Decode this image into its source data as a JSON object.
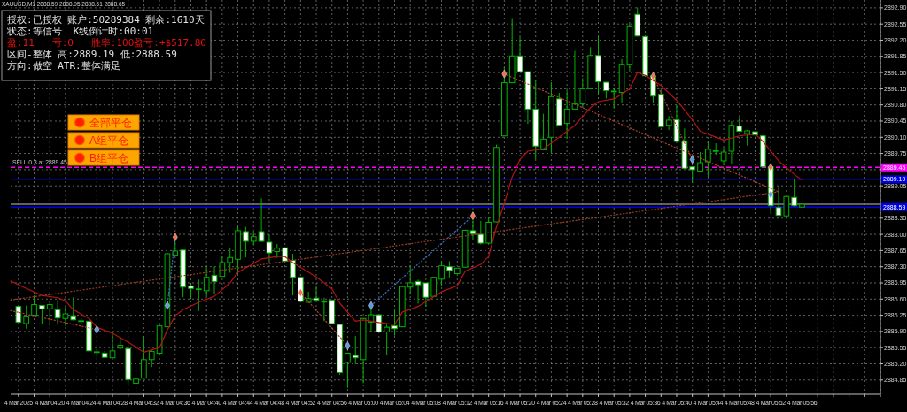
{
  "chart_data": {
    "type": "candlestick",
    "title": "XAUUSD,M1 2888.59 2888.95 2888.51 2888.65",
    "x": [
      "2025-03-04T04:16",
      "2025-03-04T04:17",
      "2025-03-04T04:18",
      "2025-03-04T04:19",
      "2025-03-04T04:20",
      "2025-03-04T04:21",
      "2025-03-04T04:22",
      "2025-03-04T04:23",
      "2025-03-04T04:24",
      "2025-03-04T04:25",
      "2025-03-04T04:26",
      "2025-03-04T04:27",
      "2025-03-04T04:28",
      "2025-03-04T04:29",
      "2025-03-04T04:30",
      "2025-03-04T04:31",
      "2025-03-04T04:32",
      "2025-03-04T04:33",
      "2025-03-04T04:34",
      "2025-03-04T04:35",
      "2025-03-04T04:36",
      "2025-03-04T04:37",
      "2025-03-04T04:38",
      "2025-03-04T04:39",
      "2025-03-04T04:40",
      "2025-03-04T04:41",
      "2025-03-04T04:42",
      "2025-03-04T04:43",
      "2025-03-04T04:44",
      "2025-03-04T04:45",
      "2025-03-04T04:46",
      "2025-03-04T04:47",
      "2025-03-04T04:48",
      "2025-03-04T04:49",
      "2025-03-04T04:50",
      "2025-03-04T04:51",
      "2025-03-04T04:52",
      "2025-03-04T04:53",
      "2025-03-04T04:54",
      "2025-03-04T04:55",
      "2025-03-04T04:56",
      "2025-03-04T04:57",
      "2025-03-04T04:58",
      "2025-03-04T04:59",
      "2025-03-04T05:00",
      "2025-03-04T05:01",
      "2025-03-04T05:02",
      "2025-03-04T05:03",
      "2025-03-04T05:04",
      "2025-03-04T05:05",
      "2025-03-04T05:06",
      "2025-03-04T05:07",
      "2025-03-04T05:08",
      "2025-03-04T05:09",
      "2025-03-04T05:10",
      "2025-03-04T05:11",
      "2025-03-04T05:12",
      "2025-03-04T05:13",
      "2025-03-04T05:14",
      "2025-03-04T05:15",
      "2025-03-04T05:16",
      "2025-03-04T05:17",
      "2025-03-04T05:18",
      "2025-03-04T05:19",
      "2025-03-04T05:20",
      "2025-03-04T05:21",
      "2025-03-04T05:22",
      "2025-03-04T05:23",
      "2025-03-04T05:24",
      "2025-03-04T05:25",
      "2025-03-04T05:26",
      "2025-03-04T05:27",
      "2025-03-04T05:28",
      "2025-03-04T05:29",
      "2025-03-04T05:30",
      "2025-03-04T05:31",
      "2025-03-04T05:32",
      "2025-03-04T05:33",
      "2025-03-04T05:34",
      "2025-03-04T05:35",
      "2025-03-04T05:36",
      "2025-03-04T05:37",
      "2025-03-04T05:38",
      "2025-03-04T05:39",
      "2025-03-04T05:40",
      "2025-03-04T05:41",
      "2025-03-04T05:42",
      "2025-03-04T05:43",
      "2025-03-04T05:44",
      "2025-03-04T05:45",
      "2025-03-04T05:46",
      "2025-03-04T05:47",
      "2025-03-04T05:48",
      "2025-03-04T05:49",
      "2025-03-04T05:50",
      "2025-03-04T05:51",
      "2025-03-04T05:52",
      "2025-03-04T05:53",
      "2025-03-04T05:54",
      "2025-03-04T05:55",
      "2025-03-04T05:56"
    ],
    "ohlc": [
      [
        2886.44,
        2886.46,
        2886.08,
        2886.1
      ],
      [
        2886.07,
        2886.46,
        2885.96,
        2886.23
      ],
      [
        2886.25,
        2886.68,
        2886.24,
        2886.48
      ],
      [
        2886.46,
        2886.46,
        2886.05,
        2886.39
      ],
      [
        2886.39,
        2886.56,
        2886.02,
        2886.48
      ],
      [
        2886.37,
        2886.58,
        2886.04,
        2886.19
      ],
      [
        2886.18,
        2886.44,
        2886.02,
        2886.28
      ],
      [
        2886.24,
        2886.64,
        2886.14,
        2886.15
      ],
      [
        2886.13,
        2886.2,
        2886.05,
        2886.13
      ],
      [
        2886.12,
        2886.12,
        2885.48,
        2885.48
      ],
      [
        2885.46,
        2885.54,
        2885.34,
        2885.46
      ],
      [
        2885.43,
        2885.48,
        2885.34,
        2885.34
      ],
      [
        2885.33,
        2885.89,
        2885.33,
        2885.48
      ],
      [
        2885.54,
        2885.78,
        2885.51,
        2885.6
      ],
      [
        2885.53,
        2885.55,
        2884.75,
        2884.86
      ],
      [
        2884.78,
        2885.15,
        2884.59,
        2884.87
      ],
      [
        2884.89,
        2885.8,
        2884.88,
        2885.29
      ],
      [
        2885.29,
        2885.49,
        2885.13,
        2885.47
      ],
      [
        2885.43,
        2886.07,
        2885.38,
        2886.02
      ],
      [
        2886.0,
        2887.6,
        2886.0,
        2887.58
      ],
      [
        2887.55,
        2887.85,
        2887.53,
        2887.64
      ],
      [
        2887.66,
        2887.67,
        2886.64,
        2886.86
      ],
      [
        2886.88,
        2886.95,
        2886.6,
        2886.83
      ],
      [
        2886.82,
        2887.02,
        2886.34,
        2886.82
      ],
      [
        2886.78,
        2887.29,
        2886.66,
        2887.07
      ],
      [
        2887.11,
        2887.3,
        2886.72,
        2886.98
      ],
      [
        2887.09,
        2887.52,
        2887.09,
        2887.39
      ],
      [
        2887.39,
        2887.71,
        2887.17,
        2887.5
      ],
      [
        2887.46,
        2888.17,
        2887.14,
        2888.08
      ],
      [
        2888.06,
        2888.16,
        2887.5,
        2887.85
      ],
      [
        2887.85,
        2888.06,
        2887.76,
        2887.95
      ],
      [
        2888.06,
        2888.78,
        2887.84,
        2887.85
      ],
      [
        2887.83,
        2887.98,
        2887.42,
        2887.6
      ],
      [
        2887.63,
        2887.79,
        2887.49,
        2887.7
      ],
      [
        2887.71,
        2887.72,
        2887.4,
        2887.42
      ],
      [
        2887.44,
        2887.58,
        2886.68,
        2887.07
      ],
      [
        2887.07,
        2887.08,
        2886.53,
        2886.55
      ],
      [
        2886.53,
        2886.76,
        2886.52,
        2886.61
      ],
      [
        2886.62,
        2886.88,
        2886.57,
        2886.58
      ],
      [
        2886.55,
        2886.63,
        2886.12,
        2886.55
      ],
      [
        2886.58,
        2886.58,
        2886.06,
        2886.07
      ],
      [
        2886.05,
        2886.06,
        2884.96,
        2885.01
      ],
      [
        2885.23,
        2885.44,
        2884.68,
        2885.43
      ],
      [
        2885.38,
        2885.8,
        2885.19,
        2885.33
      ],
      [
        2885.29,
        2886.19,
        2884.78,
        2886.18
      ],
      [
        2886.1,
        2886.4,
        2885.89,
        2886.26
      ],
      [
        2886.26,
        2886.26,
        2885.88,
        2885.89
      ],
      [
        2885.89,
        2886.05,
        2885.38,
        2885.99
      ],
      [
        2886.02,
        2886.39,
        2885.81,
        2885.96
      ],
      [
        2886.0,
        2886.88,
        2885.99,
        2886.87
      ],
      [
        2886.86,
        2887.33,
        2886.7,
        2886.95
      ],
      [
        2886.98,
        2887.02,
        2886.5,
        2886.91
      ],
      [
        2886.95,
        2886.95,
        2886.44,
        2886.64
      ],
      [
        2886.66,
        2887.08,
        2886.65,
        2887.07
      ],
      [
        2887.03,
        2887.42,
        2886.88,
        2887.32
      ],
      [
        2887.3,
        2887.42,
        2887.07,
        2887.22
      ],
      [
        2887.15,
        2887.27,
        2887.14,
        2887.27
      ],
      [
        2887.29,
        2888.1,
        2887.28,
        2888.09
      ],
      [
        2888.08,
        2888.3,
        2887.9,
        2888.01
      ],
      [
        2888.0,
        2888.29,
        2887.78,
        2887.81
      ],
      [
        2887.81,
        2888.37,
        2887.8,
        2888.26
      ],
      [
        2888.27,
        2889.94,
        2888.26,
        2889.88
      ],
      [
        2890.13,
        2891.61,
        2890.12,
        2891.28
      ],
      [
        2891.28,
        2892.68,
        2891.27,
        2891.86
      ],
      [
        2891.86,
        2892.27,
        2891.51,
        2891.52
      ],
      [
        2891.52,
        2891.53,
        2890.39,
        2890.71
      ],
      [
        2890.71,
        2891.33,
        2889.62,
        2889.91
      ],
      [
        2889.83,
        2890.61,
        2889.82,
        2890.06
      ],
      [
        2890.1,
        2891.29,
        2889.76,
        2890.98
      ],
      [
        2890.93,
        2891.06,
        2890.34,
        2890.36
      ],
      [
        2890.4,
        2891.12,
        2890.08,
        2890.71
      ],
      [
        2890.71,
        2891.97,
        2890.7,
        2890.82
      ],
      [
        2890.82,
        2891.38,
        2890.77,
        2891.15
      ],
      [
        2891.15,
        2892.05,
        2891.14,
        2891.87
      ],
      [
        2891.87,
        2892.27,
        2891.03,
        2891.3
      ],
      [
        2891.29,
        2891.3,
        2890.94,
        2891.11
      ],
      [
        2891.1,
        2891.15,
        2890.72,
        2891.1
      ],
      [
        2891.07,
        2891.79,
        2890.84,
        2891.68
      ],
      [
        2891.68,
        2892.56,
        2891.54,
        2892.51
      ],
      [
        2892.76,
        2892.91,
        2892.28,
        2892.29
      ],
      [
        2892.28,
        2892.29,
        2891.42,
        2891.43
      ],
      [
        2891.43,
        2891.43,
        2890.84,
        2890.99
      ],
      [
        2891.03,
        2891.12,
        2890.31,
        2890.33
      ],
      [
        2890.36,
        2890.56,
        2890.26,
        2890.47
      ],
      [
        2890.48,
        2890.8,
        2890.0,
        2890.01
      ],
      [
        2890.01,
        2890.29,
        2889.42,
        2889.43
      ],
      [
        2889.46,
        2889.47,
        2889.11,
        2889.4
      ],
      [
        2889.37,
        2889.78,
        2889.36,
        2889.55
      ],
      [
        2889.57,
        2890.01,
        2889.24,
        2889.84
      ],
      [
        2889.8,
        2889.97,
        2889.72,
        2889.81
      ],
      [
        2889.59,
        2889.88,
        2889.5,
        2889.78
      ],
      [
        2889.8,
        2890.45,
        2889.53,
        2890.36
      ],
      [
        2890.34,
        2890.54,
        2890.22,
        2890.23
      ],
      [
        2890.18,
        2890.26,
        2889.92,
        2890.24
      ],
      [
        2890.22,
        2890.22,
        2890.15,
        2890.15
      ],
      [
        2890.13,
        2890.14,
        2889.46,
        2889.46
      ],
      [
        2889.46,
        2889.47,
        2888.46,
        2888.62
      ],
      [
        2888.58,
        2889.01,
        2888.4,
        2888.41
      ],
      [
        2888.4,
        2888.83,
        2888.39,
        2888.82
      ],
      [
        2888.8,
        2889.21,
        2888.6,
        2888.62
      ],
      [
        2888.59,
        2888.95,
        2888.51,
        2888.65
      ]
    ],
    "color": "#00b400",
    "colors": [
      "#ffffff",
      "#000000",
      "#000000",
      "#ffffff",
      "#000000",
      "#ffffff",
      "#000000",
      "#ffffff",
      "#000000",
      "#ffffff",
      "#000000",
      "#ffffff",
      "#000000",
      "#000000",
      "#ffffff",
      "#000000",
      "#000000",
      "#000000",
      "#000000",
      "#000000",
      "#000000",
      "#ffffff",
      "#ffffff",
      "#000000",
      "#000000",
      "#ffffff",
      "#000000",
      "#000000",
      "#000000",
      "#ffffff",
      "#000000",
      "#ffffff",
      "#ffffff",
      "#000000",
      "#ffffff",
      "#ffffff",
      "#ffffff",
      "#000000",
      "#ffffff",
      "#000000",
      "#ffffff",
      "#ffffff",
      "#000000",
      "#ffffff",
      "#000000",
      "#000000",
      "#ffffff",
      "#000000",
      "#ffffff",
      "#000000",
      "#000000",
      "#ffffff",
      "#ffffff",
      "#000000",
      "#000000",
      "#ffffff",
      "#000000",
      "#000000",
      "#ffffff",
      "#ffffff",
      "#000000",
      "#000000",
      "#000000",
      "#000000",
      "#ffffff",
      "#ffffff",
      "#ffffff",
      "#000000",
      "#000000",
      "#ffffff",
      "#000000",
      "#000000",
      "#000000",
      "#000000",
      "#ffffff",
      "#ffffff",
      "#000000",
      "#000000",
      "#000000",
      "#ffffff",
      "#ffffff",
      "#ffffff",
      "#ffffff",
      "#000000",
      "#ffffff",
      "#ffffff",
      "#ffffff",
      "#000000",
      "#000000",
      "#000000",
      "#000000",
      "#000000",
      "#ffffff",
      "#000000",
      "#ffffff",
      "#ffffff",
      "#ffffff",
      "#ffffff",
      "#000000",
      "#ffffff",
      "#000000"
    ],
    "xlim": [
      "2025-03-04T04:15",
      "2025-03-04T06:06"
    ],
    "xticks": [
      {
        "value": "2025-03-04T04:16",
        "label": "4 Mar 2025"
      },
      {
        "value": "2025-03-04T04:18",
        "label": null
      },
      {
        "value": "2025-03-04T04:20",
        "label": "4 Mar 04:20"
      },
      {
        "value": "2025-03-04T04:22",
        "label": null
      },
      {
        "value": "2025-03-04T04:24",
        "label": "4 Mar 04:24"
      },
      {
        "value": "2025-03-04T04:26",
        "label": null
      },
      {
        "value": "2025-03-04T04:28",
        "label": "4 Mar 04:28"
      },
      {
        "value": "2025-03-04T04:30",
        "label": null
      },
      {
        "value": "2025-03-04T04:32",
        "label": "4 Mar 04:32"
      },
      {
        "value": "2025-03-04T04:34",
        "label": null
      },
      {
        "value": "2025-03-04T04:36",
        "label": "4 Mar 04:36"
      },
      {
        "value": "2025-03-04T04:38",
        "label": null
      },
      {
        "value": "2025-03-04T04:40",
        "label": "4 Mar 04:40"
      },
      {
        "value": "2025-03-04T04:42",
        "label": null
      },
      {
        "value": "2025-03-04T04:44",
        "label": "4 Mar 04:44"
      },
      {
        "value": "2025-03-04T04:46",
        "label": null
      },
      {
        "value": "2025-03-04T04:48",
        "label": "4 Mar 04:48"
      },
      {
        "value": "2025-03-04T04:50",
        "label": null
      },
      {
        "value": "2025-03-04T04:52",
        "label": "4 Mar 04:52"
      },
      {
        "value": "2025-03-04T04:54",
        "label": null
      },
      {
        "value": "2025-03-04T04:56",
        "label": "4 Mar 04:56"
      },
      {
        "value": "2025-03-04T04:58",
        "label": null
      },
      {
        "value": "2025-03-04T05:00",
        "label": "4 Mar 05:00"
      },
      {
        "value": "2025-03-04T05:02",
        "label": null
      },
      {
        "value": "2025-03-04T05:04",
        "label": "4 Mar 05:04"
      },
      {
        "value": "2025-03-04T05:06",
        "label": null
      },
      {
        "value": "2025-03-04T05:08",
        "label": "4 Mar 05:08"
      },
      {
        "value": "2025-03-04T05:10",
        "label": null
      },
      {
        "value": "2025-03-04T05:12",
        "label": "4 Mar 05:12"
      },
      {
        "value": "2025-03-04T05:14",
        "label": null
      },
      {
        "value": "2025-03-04T05:16",
        "label": "4 Mar 05:16"
      },
      {
        "value": "2025-03-04T05:18",
        "label": null
      },
      {
        "value": "2025-03-04T05:20",
        "label": "4 Mar 05:20"
      },
      {
        "value": "2025-03-04T05:22",
        "label": null
      },
      {
        "value": "2025-03-04T05:24",
        "label": "4 Mar 05:24"
      },
      {
        "value": "2025-03-04T05:26",
        "label": null
      },
      {
        "value": "2025-03-04T05:28",
        "label": "4 Mar 05:28"
      },
      {
        "value": "2025-03-04T05:30",
        "label": null
      },
      {
        "value": "2025-03-04T05:32",
        "label": "4 Mar 05:32"
      },
      {
        "value": "2025-03-04T05:34",
        "label": null
      },
      {
        "value": "2025-03-04T05:36",
        "label": "4 Mar 05:36"
      },
      {
        "value": "2025-03-04T05:38",
        "label": null
      },
      {
        "value": "2025-03-04T05:40",
        "label": "4 Mar 05:40"
      },
      {
        "value": "2025-03-04T05:42",
        "label": null
      },
      {
        "value": "2025-03-04T05:44",
        "label": "4 Mar 05:44"
      },
      {
        "value": "2025-03-04T05:46",
        "label": null
      },
      {
        "value": "2025-03-04T05:48",
        "label": "4 Mar 05:48"
      },
      {
        "value": "2025-03-04T05:50",
        "label": null
      },
      {
        "value": "2025-03-04T05:52",
        "label": "4 Mar 05:52"
      },
      {
        "value": "2025-03-04T05:54",
        "label": null
      },
      {
        "value": "2025-03-04T05:56",
        "label": "4 Mar 05:56"
      },
      {
        "value": "2025-03-04T05:58",
        "label": null
      },
      {
        "value": "2025-03-04T06:00",
        "label": null
      },
      {
        "value": "2025-03-04T06:02",
        "label": null
      },
      {
        "value": "2025-03-04T06:04",
        "label": null
      },
      {
        "value": "2025-03-04T06:06",
        "label": null
      }
    ],
    "ylim": [
      2884.54,
      2893.07
    ],
    "yticks": [
      {
        "value": 2884.85,
        "label": "2884.85"
      },
      {
        "value": 2885.2,
        "label": "2885.20"
      },
      {
        "value": 2885.55,
        "label": "2885.55"
      },
      {
        "value": 2885.9,
        "label": "2885.90"
      },
      {
        "value": 2886.25,
        "label": "2886.25"
      },
      {
        "value": 2886.6,
        "label": "2886.60"
      },
      {
        "value": 2886.95,
        "label": "2886.95"
      },
      {
        "value": 2887.3,
        "label": "2887.30"
      },
      {
        "value": 2887.65,
        "label": "2887.65"
      },
      {
        "value": 2888.0,
        "label": "2888.00"
      },
      {
        "value": 2888.35,
        "label": "2888.35"
      },
      {
        "value": 2888.7,
        "label": null
      },
      {
        "value": 2889.05,
        "label": "2889.05"
      },
      {
        "value": 2889.4,
        "label": null
      },
      {
        "value": 2889.75,
        "label": "2889.75"
      },
      {
        "value": 2890.1,
        "label": "2890.10"
      },
      {
        "value": 2890.45,
        "label": "2890.45"
      },
      {
        "value": 2890.8,
        "label": "2890.80"
      },
      {
        "value": 2891.15,
        "label": "2891.15"
      },
      {
        "value": 2891.5,
        "label": "2891.50"
      },
      {
        "value": 2891.85,
        "label": "2891.85"
      },
      {
        "value": 2892.2,
        "label": "2892.20"
      },
      {
        "value": 2892.55,
        "label": "2892.55"
      },
      {
        "value": 2892.9,
        "label": "2892.90"
      }
    ],
    "grid": true,
    "series": [
      {
        "type": "line",
        "color": "#b41414",
        "x": [
          "2025-03-04T04:15",
          "2025-03-04T04:17",
          "2025-03-04T04:19",
          "2025-03-04T04:21",
          "2025-03-04T04:22",
          "2025-03-04T04:23",
          "2025-03-04T04:25",
          "2025-03-04T04:26",
          "2025-03-04T04:28",
          "2025-03-04T04:30",
          "2025-03-04T04:32",
          "2025-03-04T04:34",
          "2025-03-04T04:35",
          "2025-03-04T04:36",
          "2025-03-04T04:37",
          "2025-03-04T04:39",
          "2025-03-04T04:41",
          "2025-03-04T04:43",
          "2025-03-04T04:44",
          "2025-03-04T04:46",
          "2025-03-04T04:47",
          "2025-03-04T04:49",
          "2025-03-04T04:50",
          "2025-03-04T04:51",
          "2025-03-04T04:54",
          "2025-03-04T04:56",
          "2025-03-04T04:57",
          "2025-03-04T04:59",
          "2025-03-04T05:00",
          "2025-03-04T05:02",
          "2025-03-04T05:04",
          "2025-03-04T05:05",
          "2025-03-04T05:07",
          "2025-03-04T05:10",
          "2025-03-04T05:12",
          "2025-03-04T05:13",
          "2025-03-04T05:15",
          "2025-03-04T05:16",
          "2025-03-04T05:17",
          "2025-03-04T05:18",
          "2025-03-04T05:19",
          "2025-03-04T05:20",
          "2025-03-04T05:21",
          "2025-03-04T05:23",
          "2025-03-04T05:25",
          "2025-03-04T05:27",
          "2025-03-04T05:29",
          "2025-03-04T05:30",
          "2025-03-04T05:32",
          "2025-03-04T05:34",
          "2025-03-04T05:35",
          "2025-03-04T05:36",
          "2025-03-04T05:38",
          "2025-03-04T05:40",
          "2025-03-04T05:42",
          "2025-03-04T05:43",
          "2025-03-04T05:46",
          "2025-03-04T05:48",
          "2025-03-04T05:50",
          "2025-03-04T05:51",
          "2025-03-04T05:53",
          "2025-03-04T05:55",
          "2025-03-04T05:56"
        ],
        "values": [
          2886.99,
          2886.83,
          2886.68,
          2886.63,
          2886.56,
          2886.37,
          2886.18,
          2885.99,
          2885.86,
          2885.67,
          2885.45,
          2885.55,
          2885.93,
          2886.24,
          2886.37,
          2886.53,
          2886.66,
          2886.95,
          2887.18,
          2887.37,
          2887.47,
          2887.52,
          2887.52,
          2887.39,
          2887.08,
          2886.82,
          2886.51,
          2886.12,
          2886.15,
          2886.09,
          2886.05,
          2886.32,
          2886.44,
          2886.76,
          2886.89,
          2887.2,
          2887.35,
          2887.52,
          2888.16,
          2888.67,
          2889.24,
          2889.62,
          2889.8,
          2889.85,
          2890.1,
          2890.36,
          2890.74,
          2890.87,
          2890.93,
          2891.15,
          2891.5,
          2891.44,
          2891.22,
          2890.9,
          2890.48,
          2890.23,
          2890.04,
          2890.13,
          2890.17,
          2890.01,
          2889.59,
          2889.3,
          2889.17
        ]
      },
      {
        "type": "line",
        "line_style": "dotted",
        "color": "#9a3a1e",
        "x": [
          "2025-03-04T04:15",
          "2025-03-04T05:53"
        ],
        "values": [
          2886.58,
          2888.92
        ]
      },
      {
        "type": "line",
        "line_style": "dotted",
        "color": "#b0402a",
        "x": [
          "2025-03-04T04:15",
          "2025-03-04T04:26"
        ],
        "values": [
          2886.35,
          2885.94
        ]
      },
      {
        "type": "line",
        "line_style": "dotted",
        "color": "#3a6ec0",
        "x": [
          "2025-03-04T04:35",
          "2025-03-04T04:36"
        ],
        "values": [
          2886.46,
          2887.94
        ]
      },
      {
        "type": "line",
        "line_style": "dotted",
        "color": "#b0402a",
        "x": [
          "2025-03-04T04:52",
          "2025-03-04T04:58"
        ],
        "values": [
          2886.74,
          2885.59
        ]
      },
      {
        "type": "line",
        "line_style": "dotted",
        "color": "#3a6ec0",
        "x": [
          "2025-03-04T05:01",
          "2025-03-04T05:14"
        ],
        "values": [
          2886.46,
          2888.4
        ]
      },
      {
        "type": "line",
        "line_style": "dotted",
        "color": "#b0402a",
        "x": [
          "2025-03-04T05:18",
          "2025-03-04T05:53"
        ],
        "values": [
          2891.47,
          2888.92
        ]
      },
      {
        "type": "line",
        "line_style": "dotted",
        "color": "#b0402a",
        "x": [
          "2025-03-04T05:37",
          "2025-03-04T05:42"
        ],
        "values": [
          2891.42,
          2889.62
        ]
      },
      {
        "type": "scatter",
        "marker": "diamond",
        "color": "#f07050",
        "x": [
          "2025-03-04T04:36",
          "2025-03-04T04:52",
          "2025-03-04T05:14",
          "2025-03-04T05:18",
          "2025-03-04T05:37",
          "2025-03-04T05:52"
        ],
        "values": [
          2887.94,
          2886.74,
          2888.4,
          2891.47,
          2891.42,
          2889.45
        ]
      },
      {
        "type": "scatter",
        "marker": "diamond",
        "color": "#5a9ae0",
        "x": [
          "2025-03-04T04:26",
          "2025-03-04T04:35",
          "2025-03-04T04:58",
          "2025-03-04T05:01",
          "2025-03-04T05:42",
          "2025-03-04T05:52"
        ],
        "values": [
          2885.94,
          2886.46,
          2885.59,
          2886.46,
          2889.62,
          2888.86
        ]
      }
    ],
    "ref_lines": [
      {
        "axis": "y",
        "value": 2889.45,
        "label": "2889.45",
        "color": "#ff00ff",
        "line_style": "dashed"
      },
      {
        "axis": "y",
        "value": 2889.19,
        "label": "2889.19",
        "color": "#0000e0",
        "line_style": "solid"
      },
      {
        "axis": "y",
        "value": 2888.65,
        "color": "#808080",
        "line_style": "solid"
      },
      {
        "axis": "y",
        "value": 2888.59,
        "label": "2888.59",
        "color": "#0000e0",
        "line_style": "solid"
      }
    ],
    "annotations": [
      "授权:已授权 账户:50289384 剩余:1610天",
      "状态:等信号  K线倒计时:00:01",
      "盈:11   亏:0   胜率:100盈亏:+$517.80",
      "区间-整体 高:2889.19 低:2888.59",
      "方向:做空 ATR:整体满足",
      "全部平仓",
      "A组平仓",
      "B组平仓",
      {
        "text": "SELL 0.3 at 2889.45",
        "x": "2025-03-04T04:15",
        "y": 2889.45
      }
    ]
  }
}
